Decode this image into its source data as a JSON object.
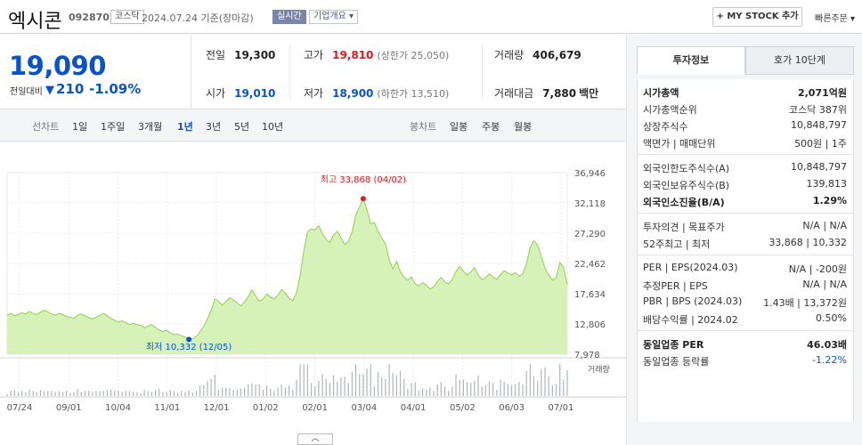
{
  "header": {
    "stock_name": "엑시콘",
    "stock_code": "092870",
    "market": "코스닥",
    "date": "2024.07.24 기준(장마감)",
    "realtime_label": "실시간",
    "company_label": "기업개요 ▾",
    "mystock_label": "+ MY STOCK 추가",
    "quick_order_label": "빠른주문 ▾"
  },
  "price": {
    "current": "19,090",
    "change_label": "전일대비",
    "change_value": "210",
    "change_pct": "-1.09%"
  },
  "quotes": {
    "prev_label": "전일",
    "prev": "19,300",
    "high_label": "고가",
    "high": "19,810",
    "upper_limit": "(상한가 25,050)",
    "volume_label": "거래량",
    "volume": "406,679",
    "open_label": "시가",
    "open": "19,010",
    "low_label": "저가",
    "low": "18,900",
    "lower_limit": "(하한가 13,510)",
    "amount_label": "거래대금",
    "amount": "7,880",
    "amount_unit": "백만"
  },
  "period_bar": {
    "line_label": "선차트",
    "line_periods": [
      "1일",
      "1주일",
      "3개월",
      "1년",
      "3년",
      "5년",
      "10년"
    ],
    "active_period": "1년",
    "candle_label": "봉차트",
    "candle_periods": [
      "일봉",
      "주봉",
      "월봉"
    ]
  },
  "chart_data": {
    "type": "area",
    "y_ticks": [
      36946,
      32118,
      27290,
      22462,
      17634,
      12806,
      7978
    ],
    "ylim": [
      7978,
      36946
    ],
    "x_ticks": [
      "07/24",
      "09/01",
      "10/04",
      "11/01",
      "12/01",
      "01/02",
      "02/01",
      "03/04",
      "04/01",
      "05/02",
      "06/03",
      "07/01"
    ],
    "high_annotation": "최고 33,868 (04/02)",
    "low_annotation": "최저 10,332 (12/05)",
    "volume_label": "거래량",
    "series": [
      {
        "values": [
          14200,
          14500,
          14100,
          14300,
          14600,
          14400,
          14800,
          14500,
          14300,
          14700,
          15000,
          14700,
          14400,
          14200,
          14500,
          14300,
          14000,
          13900,
          13700,
          14200,
          14400,
          14100,
          13800,
          13600,
          13900,
          14200,
          14500,
          14100,
          13700,
          13400,
          13100,
          13300,
          13000,
          12700,
          12900,
          12700,
          12600,
          12200,
          12500,
          12700,
          12300,
          11800,
          11600,
          11800,
          11400,
          11100,
          11200,
          10900,
          10700,
          10332,
          10500,
          10800,
          11600,
          12400,
          13600,
          15000,
          16800,
          16400,
          15800,
          16400,
          17000,
          16600,
          16200,
          15700,
          16300,
          17200,
          18200,
          17300,
          16400,
          16800,
          17600,
          17100,
          16800,
          17400,
          18300,
          17700,
          16900,
          16500,
          17800,
          20600,
          24500,
          27500,
          28000,
          27800,
          28500,
          27200,
          26300,
          25800,
          27000,
          27600,
          26600,
          25500,
          26000,
          27500,
          30200,
          31500,
          32800,
          31000,
          28800,
          29000,
          27500,
          26500,
          25600,
          23000,
          21600,
          22800,
          21200,
          20300,
          19800,
          20300,
          19200,
          18900,
          19400,
          19000,
          18400,
          18700,
          19600,
          20200,
          19500,
          19200,
          19900,
          21200,
          22000,
          21200,
          20600,
          21100,
          21800,
          20600,
          19900,
          20200,
          20800,
          20300,
          19900,
          20700,
          21300,
          20900,
          20600,
          21000,
          20400,
          20800,
          22400,
          25000,
          26100,
          25400,
          23600,
          21700,
          20600,
          19800,
          20200,
          22600,
          21800,
          19090
        ]
      }
    ]
  },
  "right_panel": {
    "tab_invest": "투자정보",
    "tab_orderbook": "호가 10단계",
    "section1": [
      {
        "label": "시가총액",
        "value": "2,071억원",
        "bold": true
      },
      {
        "label": "시가총액순위",
        "value": "코스닥 387위"
      },
      {
        "label": "상장주식수",
        "value": "10,848,797"
      },
      {
        "label": "액면가 | 매매단위",
        "value": "500원 | 1주"
      }
    ],
    "section2": [
      {
        "label": "외국인한도주식수(A)",
        "value": "10,848,797"
      },
      {
        "label": "외국인보유주식수(B)",
        "value": "139,813"
      },
      {
        "label": "외국인소진율(B/A)",
        "value": "1.29%",
        "bold": true
      }
    ],
    "section3": [
      {
        "label": "투자의견 | 목표주가",
        "value": "N/A | N/A"
      },
      {
        "label": "52주최고 | 최저",
        "value": "33,868 | 10,332"
      }
    ],
    "section4": [
      {
        "label": "PER | EPS(2024.03)",
        "value": "N/A | -200원"
      },
      {
        "label": "추정PER | EPS",
        "value": "N/A | N/A"
      },
      {
        "label": "PBR | BPS (2024.03)",
        "value": "1.43배 | 13,372원"
      },
      {
        "label": "배당수익률 | 2024.02",
        "value": "0.50%"
      }
    ],
    "section5": [
      {
        "label": "동일업종 PER",
        "value": "46.03배",
        "bold": true
      },
      {
        "label": "동일업종 등락률",
        "value": "-1.22%"
      }
    ]
  },
  "colors": {
    "up": "#e6171f",
    "down": "#0a52cc",
    "area_fill": "#d7f2b8",
    "area_line": "#8ed14d"
  }
}
